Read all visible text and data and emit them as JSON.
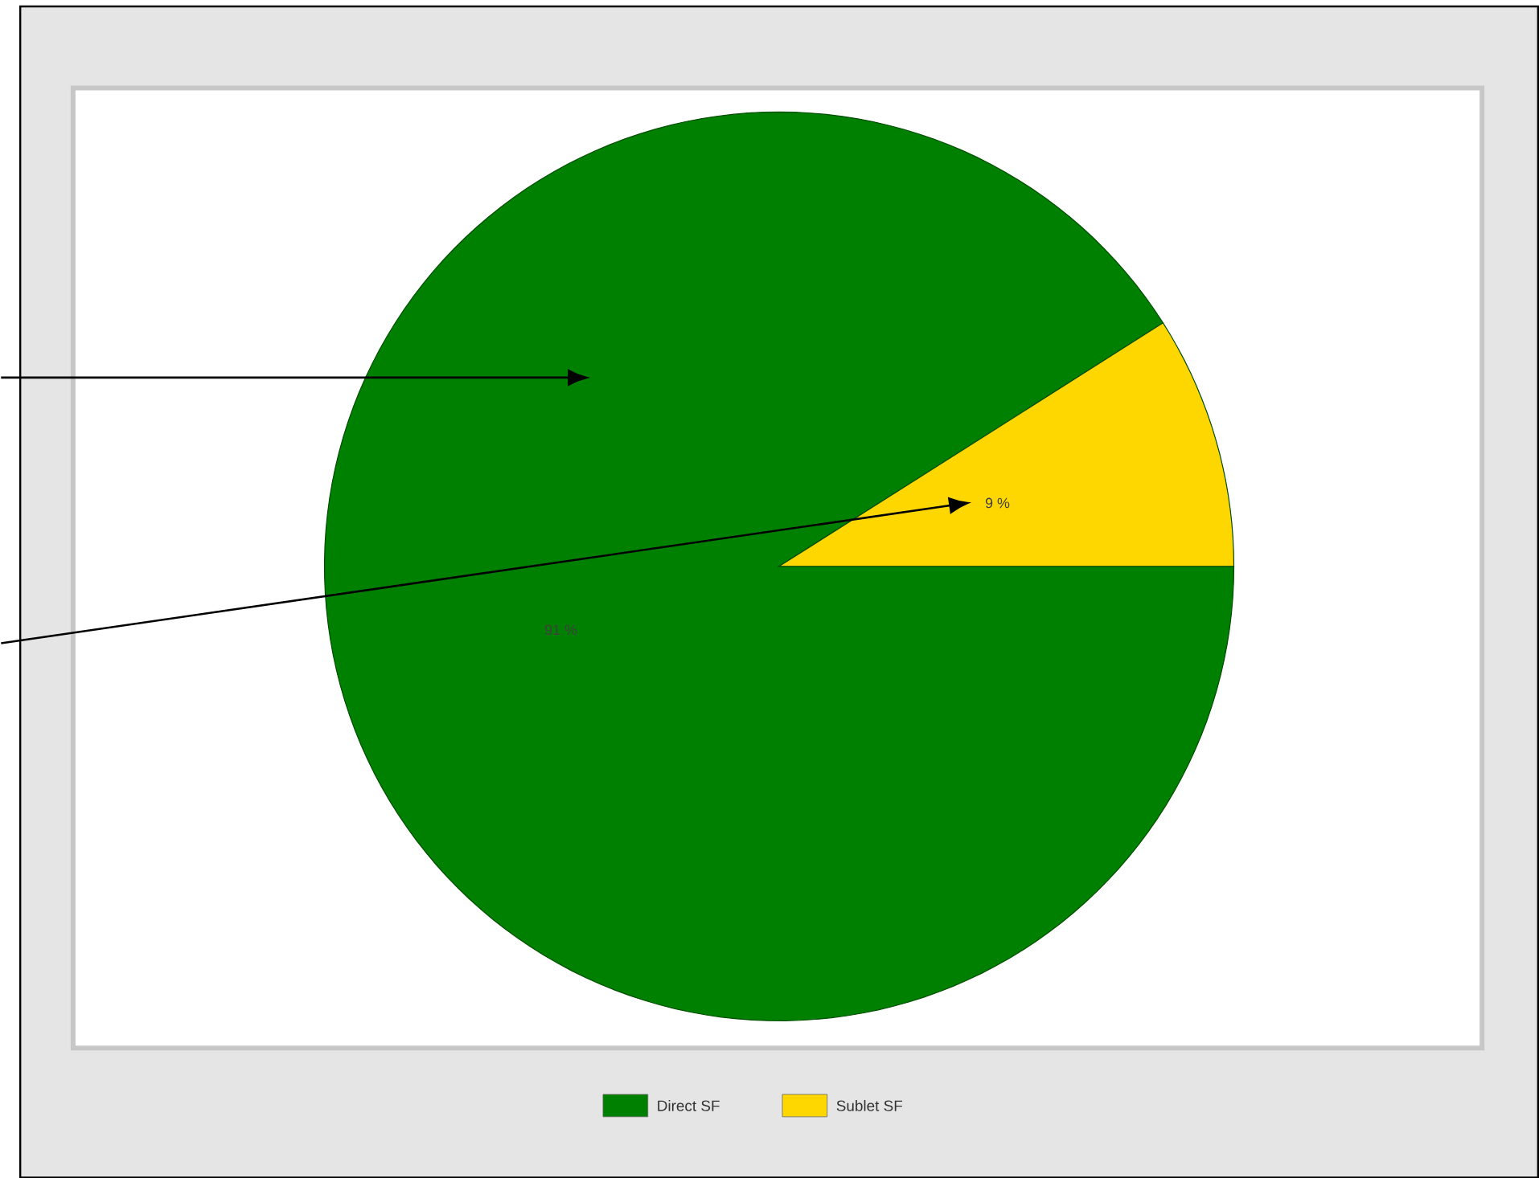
{
  "chart_data": {
    "type": "pie",
    "categories": [
      "Direct SF",
      "Sublet SF"
    ],
    "values": [
      91,
      9
    ],
    "colors": [
      "#008000",
      "#ffd700"
    ],
    "value_labels": [
      "91 %",
      "9 %"
    ],
    "legend": "bottom"
  }
}
